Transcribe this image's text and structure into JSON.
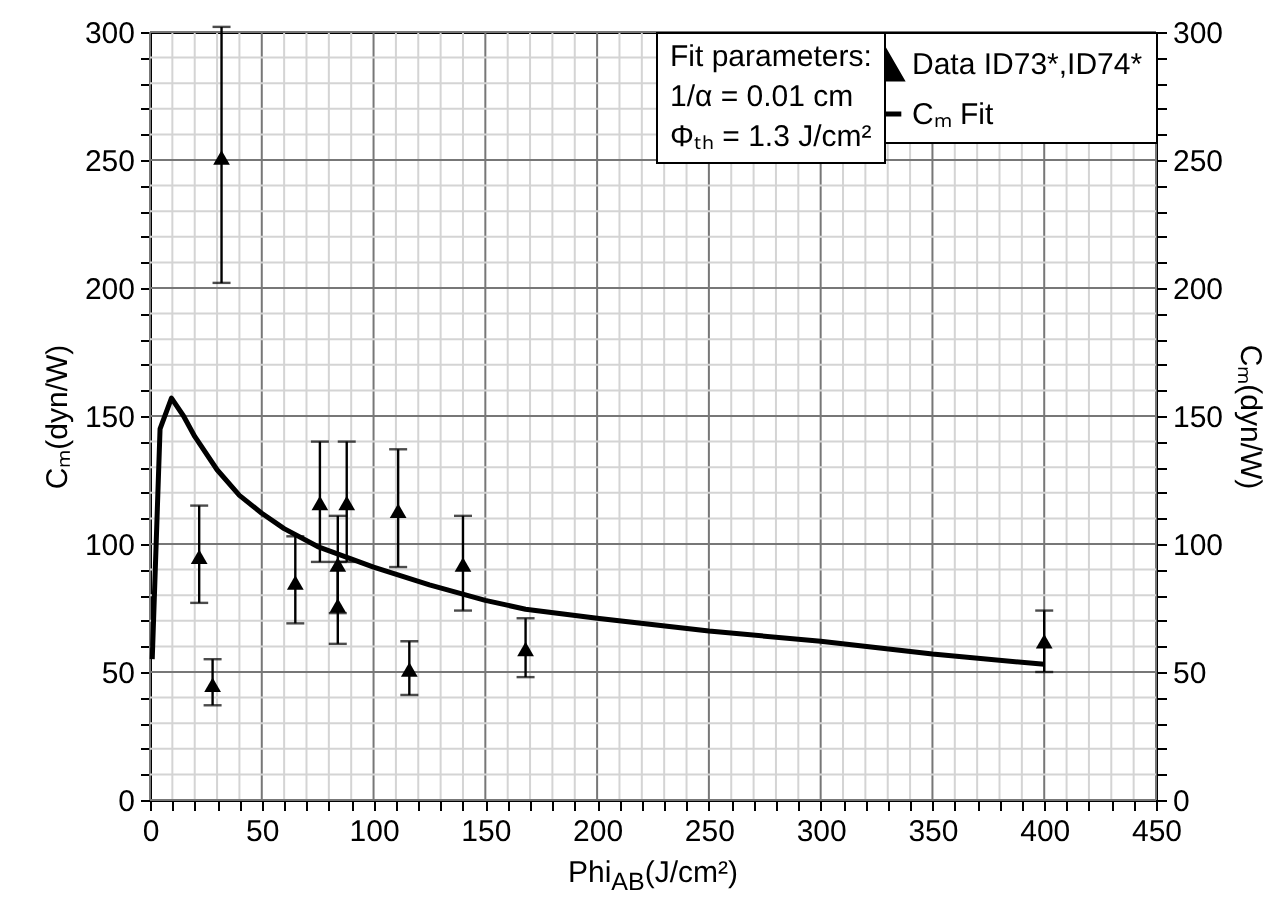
{
  "chart_data": {
    "type": "scatter",
    "xlabel": "Phi$_{AB}$(J/cm²)",
    "ylabel": "Cₘ(dyn/W)",
    "y2label": "Cₘ(dyn/W)",
    "annotations": [
      "Fit parameters:",
      "1/α = 0.01 cm",
      "Φₜₕ = 1.3 J/cm²"
    ],
    "xlim": [
      0,
      450
    ],
    "ylim": [
      0,
      300
    ],
    "y2lim": [
      0,
      300
    ],
    "xticks": [
      0,
      {
        "value": 10,
        "label": null
      },
      {
        "value": 20,
        "label": null
      },
      {
        "value": 30,
        "label": null
      },
      {
        "value": 40,
        "label": null
      },
      50,
      {
        "value": 60,
        "label": null
      },
      {
        "value": 70,
        "label": null
      },
      {
        "value": 80,
        "label": null
      },
      {
        "value": 90,
        "label": null
      },
      100,
      {
        "value": 110,
        "label": null
      },
      {
        "value": 120,
        "label": null
      },
      {
        "value": 130,
        "label": null
      },
      {
        "value": 140,
        "label": null
      },
      150,
      {
        "value": 160,
        "label": null
      },
      {
        "value": 170,
        "label": null
      },
      {
        "value": 180,
        "label": null
      },
      {
        "value": 190,
        "label": null
      },
      200,
      {
        "value": 210,
        "label": null
      },
      {
        "value": 220,
        "label": null
      },
      {
        "value": 230,
        "label": null
      },
      {
        "value": 240,
        "label": null
      },
      250,
      {
        "value": 260,
        "label": null
      },
      {
        "value": 270,
        "label": null
      },
      {
        "value": 280,
        "label": null
      },
      {
        "value": 290,
        "label": null
      },
      300,
      {
        "value": 310,
        "label": null
      },
      {
        "value": 320,
        "label": null
      },
      {
        "value": 330,
        "label": null
      },
      {
        "value": 340,
        "label": null
      },
      350,
      {
        "value": 360,
        "label": null
      },
      {
        "value": 370,
        "label": null
      },
      {
        "value": 380,
        "label": null
      },
      {
        "value": 390,
        "label": null
      },
      400,
      {
        "value": 410,
        "label": null
      },
      {
        "value": 420,
        "label": null
      },
      {
        "value": 430,
        "label": null
      },
      {
        "value": 440,
        "label": null
      },
      450
    ],
    "yticks": [
      0,
      {
        "value": 10,
        "label": null
      },
      {
        "value": 20,
        "label": null
      },
      {
        "value": 30,
        "label": null
      },
      {
        "value": 40,
        "label": null
      },
      50,
      {
        "value": 60,
        "label": null
      },
      {
        "value": 70,
        "label": null
      },
      {
        "value": 80,
        "label": null
      },
      {
        "value": 90,
        "label": null
      },
      100,
      {
        "value": 110,
        "label": null
      },
      {
        "value": 120,
        "label": null
      },
      {
        "value": 130,
        "label": null
      },
      {
        "value": 140,
        "label": null
      },
      150,
      {
        "value": 160,
        "label": null
      },
      {
        "value": 170,
        "label": null
      },
      {
        "value": 180,
        "label": null
      },
      {
        "value": 190,
        "label": null
      },
      200,
      {
        "value": 210,
        "label": null
      },
      {
        "value": 220,
        "label": null
      },
      {
        "value": 230,
        "label": null
      },
      {
        "value": 240,
        "label": null
      },
      250,
      {
        "value": 260,
        "label": null
      },
      {
        "value": 270,
        "label": null
      },
      {
        "value": 280,
        "label": null
      },
      {
        "value": 290,
        "label": null
      },
      300
    ],
    "y2ticks": [
      0,
      {
        "value": 10,
        "label": null
      },
      {
        "value": 20,
        "label": null
      },
      {
        "value": 30,
        "label": null
      },
      {
        "value": 40,
        "label": null
      },
      50,
      {
        "value": 60,
        "label": null
      },
      {
        "value": 70,
        "label": null
      },
      {
        "value": 80,
        "label": null
      },
      {
        "value": 90,
        "label": null
      },
      100,
      {
        "value": 110,
        "label": null
      },
      {
        "value": 120,
        "label": null
      },
      {
        "value": 130,
        "label": null
      },
      {
        "value": 140,
        "label": null
      },
      150,
      {
        "value": 160,
        "label": null
      },
      {
        "value": 170,
        "label": null
      },
      {
        "value": 180,
        "label": null
      },
      {
        "value": 190,
        "label": null
      },
      200,
      {
        "value": 210,
        "label": null
      },
      {
        "value": 220,
        "label": null
      },
      {
        "value": 230,
        "label": null
      },
      {
        "value": 240,
        "label": null
      },
      250,
      {
        "value": 260,
        "label": null
      },
      {
        "value": 270,
        "label": null
      },
      {
        "value": 280,
        "label": null
      },
      {
        "value": 290,
        "label": null
      },
      300
    ],
    "grid": true,
    "legend": "top right",
    "series": [
      {
        "name": "Data ID73*,ID74*",
        "marker": "triangle",
        "color": "#000000",
        "x": [
          22,
          28,
          32,
          65,
          76,
          84,
          84,
          88,
          111,
          116,
          140,
          168,
          400
        ],
        "values": [
          95,
          45,
          251,
          85,
          116,
          92,
          76,
          116,
          113,
          51,
          92,
          59,
          62
        ],
        "errors": [
          [
            77,
            115
          ],
          [
            37,
            55
          ],
          [
            202,
            302
          ],
          [
            69,
            103
          ],
          [
            93,
            140
          ],
          [
            73,
            111
          ],
          [
            61,
            93
          ],
          [
            93,
            140
          ],
          [
            91,
            137
          ],
          [
            41,
            62
          ],
          [
            74,
            111
          ],
          [
            48,
            71
          ],
          [
            50,
            74
          ]
        ]
      },
      {
        "name": "Cₘ Fit",
        "type": "line",
        "color": "#000000",
        "x": [
          1,
          4.5,
          9.6,
          15,
          20,
          30,
          40,
          50,
          60,
          75,
          100,
          125,
          150,
          168,
          200,
          250,
          300,
          350,
          400
        ],
        "values": [
          55,
          145,
          157,
          150,
          142,
          129,
          119,
          112,
          106,
          99,
          91,
          84,
          78,
          74.5,
          71,
          66,
          62,
          57,
          53
        ]
      }
    ]
  }
}
